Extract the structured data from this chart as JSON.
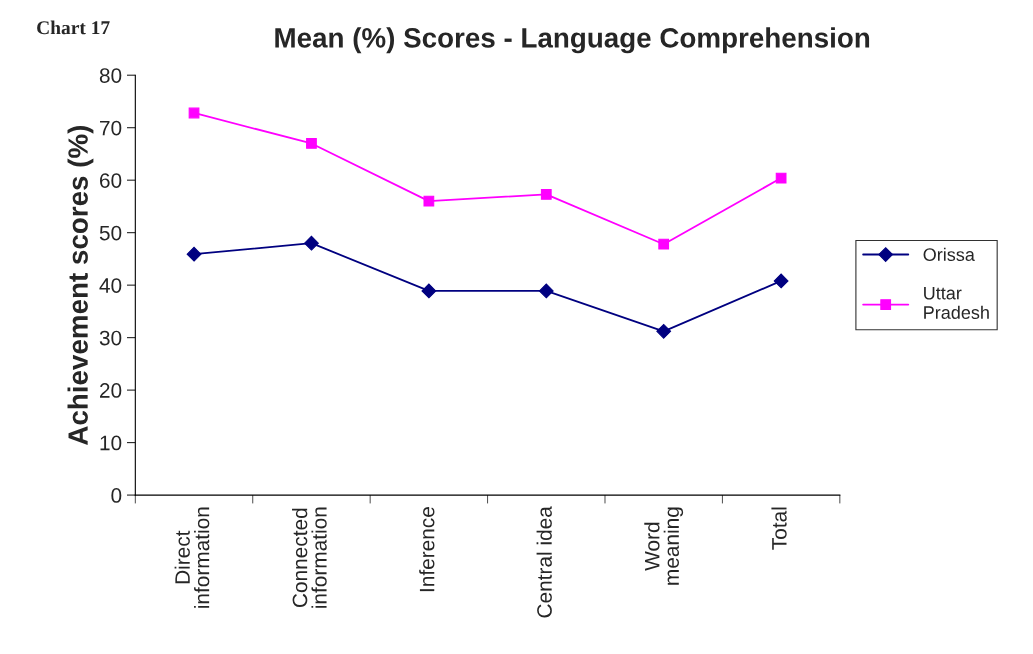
{
  "chart_data": {
    "type": "line",
    "title": "Mean (%) Scores - Language Comprehension",
    "ylabel": "Achievement scores (%)",
    "annotations": [
      "Chart 17"
    ],
    "categories": [
      "Direct\ninformation",
      "Connected\ninformation",
      "Inference",
      "Central idea",
      "Word\nmeaning",
      "Total"
    ],
    "series": [
      {
        "name": "Orissa",
        "color": "#000080",
        "marker": "diamond",
        "values": [
          45.9,
          48,
          38.9,
          38.9,
          31.2,
          40.8
        ]
      },
      {
        "name": "Uttar\nPradesh",
        "color": "#ff00ff",
        "marker": "square",
        "values": [
          72.8,
          67,
          56,
          57.3,
          47.8,
          60.4
        ]
      }
    ],
    "ylim": [
      0,
      80
    ],
    "yticks": [
      0,
      10,
      20,
      30,
      40,
      50,
      60,
      70,
      80
    ],
    "grid": false,
    "legend": "right",
    "line_style": "solid"
  }
}
